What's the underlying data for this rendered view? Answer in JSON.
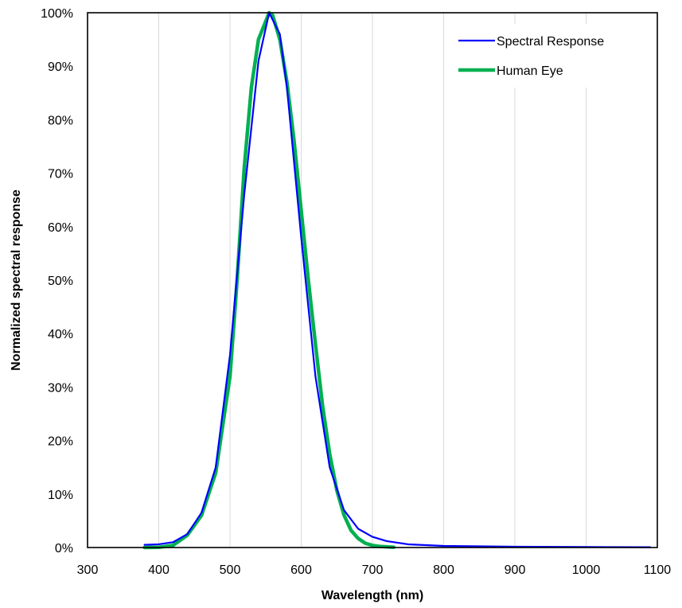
{
  "chart_data": {
    "type": "line",
    "xlabel": "Wavelength (nm)",
    "ylabel": "Normalized spectral response",
    "xlim": [
      300,
      1100
    ],
    "ylim": [
      0,
      100
    ],
    "x_ticks": [
      300,
      400,
      500,
      600,
      700,
      800,
      900,
      1000,
      1100
    ],
    "y_ticks": [
      0,
      10,
      20,
      30,
      40,
      50,
      60,
      70,
      80,
      90,
      100
    ],
    "y_tick_format": "percent",
    "grid": "vertical",
    "legend_position": "top-right",
    "series": [
      {
        "name": "Spectral Response",
        "color": "#0000ff",
        "points": [
          [
            380,
            0.5
          ],
          [
            400,
            0.6
          ],
          [
            420,
            1.0
          ],
          [
            440,
            2.5
          ],
          [
            460,
            6.5
          ],
          [
            480,
            15
          ],
          [
            500,
            36
          ],
          [
            520,
            66
          ],
          [
            540,
            91
          ],
          [
            555,
            100
          ],
          [
            570,
            96
          ],
          [
            580,
            86
          ],
          [
            600,
            58
          ],
          [
            620,
            32
          ],
          [
            640,
            15
          ],
          [
            660,
            7
          ],
          [
            680,
            3.5
          ],
          [
            700,
            2
          ],
          [
            720,
            1.2
          ],
          [
            750,
            0.6
          ],
          [
            800,
            0.3
          ],
          [
            900,
            0.15
          ],
          [
            1000,
            0.1
          ],
          [
            1090,
            0.05
          ]
        ]
      },
      {
        "name": "Human Eye",
        "color": "#00b050",
        "points": [
          [
            380,
            0
          ],
          [
            400,
            0.04
          ],
          [
            420,
            0.4
          ],
          [
            440,
            2.3
          ],
          [
            460,
            6
          ],
          [
            480,
            14
          ],
          [
            500,
            32
          ],
          [
            510,
            50
          ],
          [
            520,
            71
          ],
          [
            530,
            86
          ],
          [
            540,
            95
          ],
          [
            555,
            100
          ],
          [
            560,
            99.5
          ],
          [
            570,
            95
          ],
          [
            580,
            87
          ],
          [
            590,
            76
          ],
          [
            600,
            63
          ],
          [
            610,
            50
          ],
          [
            620,
            38
          ],
          [
            630,
            26.5
          ],
          [
            640,
            17.5
          ],
          [
            650,
            10.7
          ],
          [
            660,
            6.1
          ],
          [
            670,
            3.2
          ],
          [
            680,
            1.7
          ],
          [
            690,
            0.8
          ],
          [
            700,
            0.4
          ],
          [
            710,
            0.2
          ],
          [
            730,
            0.05
          ]
        ]
      }
    ]
  }
}
